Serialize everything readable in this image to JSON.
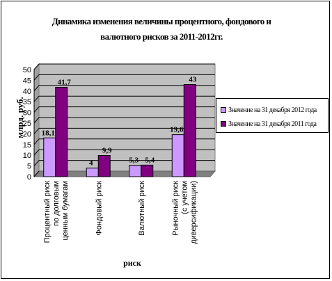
{
  "chart_data": {
    "type": "bar",
    "title": "Динамика изменения величины процентного, фондового и валютного рисков за 2011-2012гг.",
    "title_lines": [
      "Динамика изменения величины процентного, фондового и",
      "валютного рисков за 2011-2012гг."
    ],
    "xlabel": "риск",
    "ylabel": "млрд. руб.",
    "ylim": [
      0,
      50
    ],
    "yticks": [
      0,
      5,
      10,
      15,
      20,
      25,
      30,
      35,
      40,
      45,
      50
    ],
    "ytick_labels": [
      "0",
      "5",
      "10",
      "15",
      "20",
      "25",
      "30",
      "35",
      "40",
      "45",
      "50"
    ],
    "grid": true,
    "legend_position": "right",
    "categories": [
      [
        "Процентный риск",
        "по долговым",
        "ценным бумагам"
      ],
      [
        "Фондовый риск"
      ],
      [
        "Валютный риск"
      ],
      [
        "Рыночный риск",
        "(с учетом",
        "диверсификации)"
      ]
    ],
    "series": [
      {
        "name": "Значение на 31 декабря 2012 года",
        "color": "#CC99FF",
        "values": [
          18.1,
          4,
          5.3,
          19.6
        ],
        "labels": [
          "18,1",
          "4",
          "5,3",
          "19,6"
        ]
      },
      {
        "name": "Значение на 31 декабря 2011 года",
        "color": "#800080",
        "values": [
          41.7,
          9.9,
          5.4,
          43
        ],
        "labels": [
          "41,7",
          "9,9",
          "5,4",
          "43"
        ]
      }
    ],
    "colors": {
      "plot_background": "#C0C0C0",
      "grid": "#000000",
      "bar_outline": "#000000"
    }
  }
}
